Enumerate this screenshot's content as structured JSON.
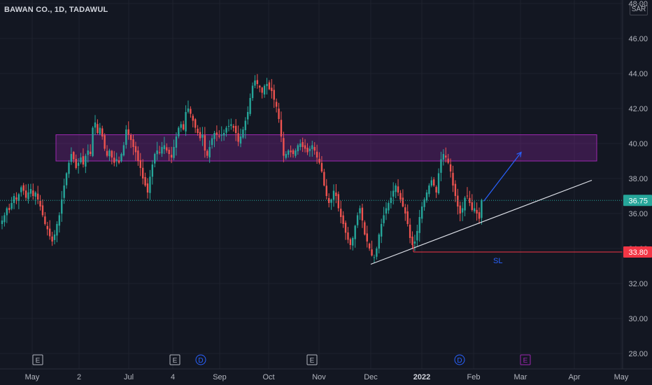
{
  "header": {
    "title": "BAWAN CO., 1D, TADAWUL",
    "currency": "SAR"
  },
  "chart_data": {
    "type": "candlestick",
    "yaxis": {
      "ticks": [
        "48.00",
        "46.00",
        "44.00",
        "42.00",
        "40.00",
        "38.00",
        "36.00",
        "34.00",
        "32.00",
        "30.00",
        "28.00"
      ],
      "tick_values": [
        48,
        46,
        44,
        42,
        40,
        38,
        36,
        34,
        32,
        30,
        28
      ],
      "range": [
        27.6,
        48.2
      ]
    },
    "xaxis": {
      "tick_labels": [
        "May",
        "2",
        "Jul",
        "4",
        "Sep",
        "Oct",
        "Nov",
        "Dec",
        "2022",
        "Feb",
        "Mar",
        "Apr",
        "May"
      ],
      "tick_bold": [
        false,
        false,
        false,
        false,
        false,
        false,
        false,
        false,
        true,
        false,
        false,
        false,
        false
      ]
    },
    "price_labels": [
      {
        "value": 36.75,
        "text": "36.75",
        "color": "#26a69a"
      },
      {
        "value": 33.8,
        "text": "33.80",
        "color": "#f23645"
      }
    ],
    "zone": {
      "low": 39.0,
      "high": 40.5,
      "color": "#9c27b0"
    },
    "support_line": {
      "from_price": 33.1,
      "to_price": 37.9
    },
    "stop_loss": {
      "price": 33.8,
      "label": "SL"
    },
    "projection_arrow": {
      "from_price": 36.7,
      "to_price": 39.5
    },
    "event_markers": [
      {
        "letter": "E",
        "kind": "earnings"
      },
      {
        "letter": "E",
        "kind": "earnings"
      },
      {
        "letter": "D",
        "kind": "dividend"
      },
      {
        "letter": "E",
        "kind": "earnings"
      },
      {
        "letter": "D",
        "kind": "dividend"
      },
      {
        "letter": "E",
        "kind": "earnings-upcoming"
      }
    ],
    "closes": [
      35.6,
      35.9,
      36.3,
      36.2,
      36.6,
      37.0,
      36.8,
      37.1,
      37.5,
      37.3,
      36.9,
      37.2,
      37.4,
      37.0,
      37.2,
      36.8,
      36.4,
      35.9,
      35.4,
      35.1,
      34.7,
      34.4,
      34.8,
      35.4,
      35.9,
      36.8,
      37.6,
      38.3,
      38.9,
      39.4,
      39.1,
      38.6,
      38.9,
      39.2,
      38.8,
      39.3,
      39.6,
      39.4,
      40.9,
      41.2,
      40.6,
      40.9,
      40.4,
      39.7,
      39.3,
      39.6,
      39.2,
      38.9,
      39.1,
      38.9,
      39.4,
      39.9,
      40.8,
      40.5,
      40.2,
      39.8,
      39.5,
      39.0,
      38.6,
      38.0,
      37.6,
      37.2,
      38.1,
      38.8,
      39.4,
      39.6,
      39.5,
      39.8,
      39.9,
      39.6,
      39.4,
      39.2,
      39.8,
      40.4,
      40.9,
      41.1,
      40.8,
      41.8,
      42.0,
      41.7,
      41.3,
      40.9,
      40.6,
      40.3,
      40.5,
      39.6,
      39.3,
      39.8,
      40.3,
      40.6,
      40.5,
      40.4,
      40.5,
      40.6,
      40.9,
      41.0,
      41.1,
      40.9,
      40.6,
      40.1,
      40.4,
      40.8,
      41.3,
      41.8,
      42.6,
      43.3,
      43.6,
      43.4,
      43.2,
      42.9,
      43.3,
      43.4,
      43.1,
      43.0,
      42.5,
      42.1,
      41.4,
      40.4,
      39.3,
      39.4,
      39.6,
      39.5,
      39.4,
      39.6,
      39.9,
      40.0,
      39.8,
      39.7,
      39.5,
      39.7,
      39.9,
      39.6,
      39.2,
      38.9,
      38.4,
      37.6,
      37.0,
      36.6,
      36.8,
      37.3,
      37.0,
      36.3,
      35.8,
      35.4,
      34.9,
      34.5,
      34.2,
      34.6,
      35.3,
      35.9,
      36.3,
      35.6,
      34.8,
      34.4,
      34.0,
      33.6,
      33.5,
      34.0,
      34.8,
      35.4,
      35.9,
      36.3,
      36.6,
      36.9,
      37.3,
      37.6,
      37.2,
      36.8,
      36.4,
      36.0,
      35.4,
      34.6,
      34.2,
      34.4,
      35.0,
      35.8,
      36.4,
      36.8,
      37.2,
      37.6,
      37.9,
      37.6,
      37.2,
      38.3,
      39.1,
      39.4,
      39.2,
      38.9,
      38.4,
      37.6,
      37.0,
      36.4,
      36.0,
      36.3,
      36.9,
      37.0,
      36.6,
      36.2,
      36.3,
      36.0,
      35.7,
      36.75
    ]
  }
}
